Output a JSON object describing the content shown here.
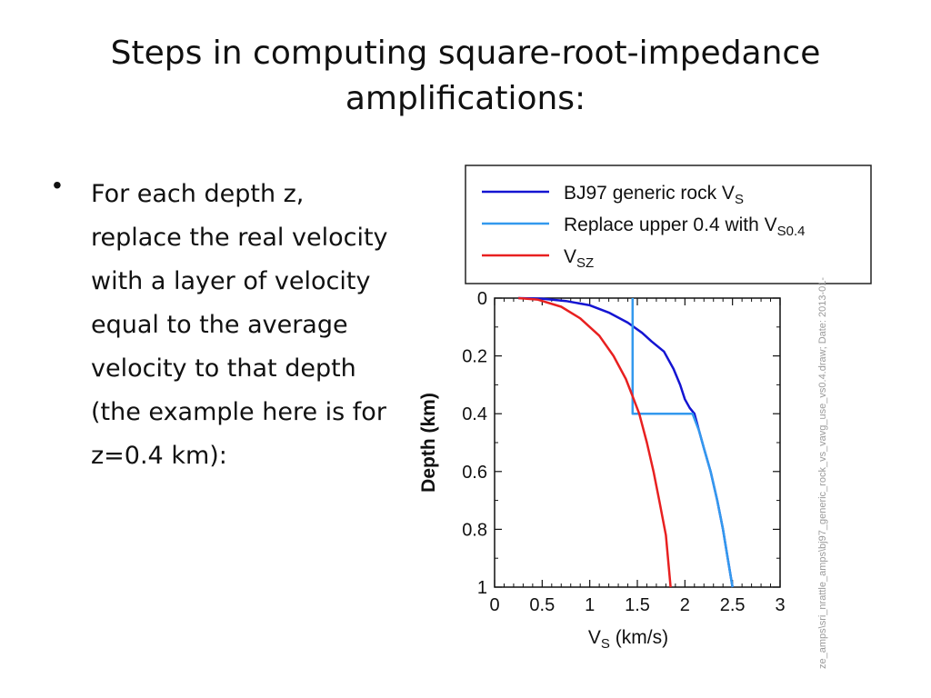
{
  "slide": {
    "title_line1": "Steps in computing square-root-impedance",
    "title_line2": "amplifications:",
    "bullet": "For each depth z, replace the real velocity with a layer of velocity equal to the average velocity to that depth (the example here is for z=0.4 km):"
  },
  "chart_data": {
    "type": "line",
    "xlabel": "V",
    "xlabel_sub": "S",
    "xlabel_unit": " (km/s)",
    "ylabel": "Depth (km)",
    "xlim": [
      0,
      3
    ],
    "ylim": [
      1,
      0
    ],
    "xticks": [
      0,
      0.5,
      1,
      1.5,
      2,
      2.5,
      3
    ],
    "xtick_labels": [
      "0",
      "0.5",
      "1",
      "1.5",
      "2",
      "2.5",
      "3"
    ],
    "yticks": [
      0,
      0.2,
      0.4,
      0.6,
      0.8,
      1
    ],
    "ytick_labels": [
      "0",
      "0.2",
      "0.4",
      "0.6",
      "0.8",
      "1"
    ],
    "legend_position": "top, above plot",
    "series": [
      {
        "name": "BJ97 generic rock V",
        "name_sub": "S",
        "color": "#1414d2",
        "x": [
          0.25,
          0.5,
          0.75,
          1.0,
          1.2,
          1.4,
          1.55,
          1.65,
          1.78,
          1.88,
          1.95,
          2.0,
          2.05,
          2.1,
          2.15,
          2.2,
          2.27,
          2.34,
          2.4,
          2.45,
          2.5
        ],
        "y": [
          0.0,
          0.002,
          0.01,
          0.025,
          0.05,
          0.085,
          0.12,
          0.15,
          0.185,
          0.245,
          0.3,
          0.35,
          0.38,
          0.4,
          0.46,
          0.52,
          0.6,
          0.7,
          0.8,
          0.9,
          1.0
        ]
      },
      {
        "name": "Replace upper 0.4 with V",
        "name_sub": "S0.4",
        "color": "#3399ee",
        "x": [
          1.45,
          1.45,
          2.08,
          2.15,
          2.2,
          2.27,
          2.34,
          2.4,
          2.45,
          2.5
        ],
        "y": [
          0.0,
          0.4,
          0.4,
          0.46,
          0.52,
          0.6,
          0.7,
          0.8,
          0.9,
          1.0
        ]
      },
      {
        "name": "V",
        "name_sub": "SZ",
        "color": "#e82020",
        "x": [
          0.25,
          0.45,
          0.7,
          0.9,
          1.1,
          1.25,
          1.38,
          1.45,
          1.52,
          1.6,
          1.67,
          1.73,
          1.8,
          1.85
        ],
        "y": [
          0.0,
          0.005,
          0.03,
          0.07,
          0.13,
          0.2,
          0.28,
          0.34,
          0.4,
          0.5,
          0.6,
          0.7,
          0.82,
          1.0
        ]
      }
    ],
    "side_annotation": "ze_amps\\sri_nrattle_amps\\bj97_generic_rock_vs_vavg_use_vs0.4.draw; Date: 2013-01-"
  }
}
